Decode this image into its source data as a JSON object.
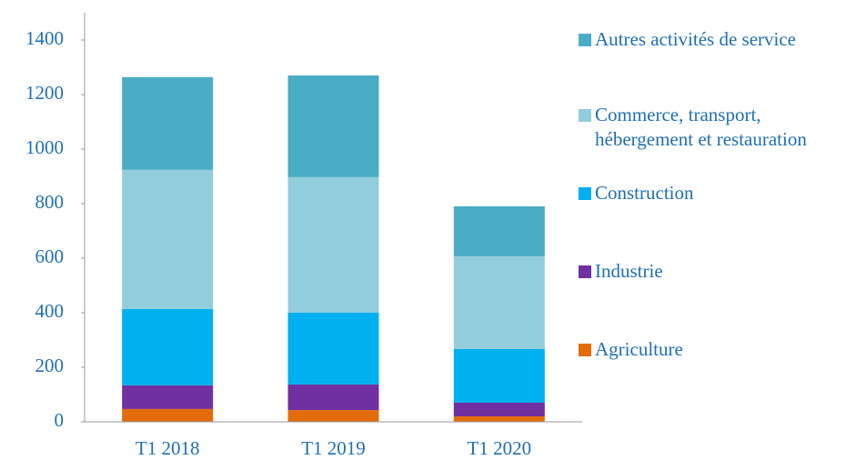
{
  "chart_data": {
    "type": "stacked_bar",
    "categories": [
      "T1 2018",
      "T1 2019",
      "T1 2020"
    ],
    "series": [
      {
        "name": "Agriculture",
        "color": "#e36c0a",
        "values": [
          47,
          43,
          20
        ]
      },
      {
        "name": "Industrie",
        "color": "#7030a0",
        "values": [
          87,
          94,
          50
        ]
      },
      {
        "name": "Construction",
        "color": "#00b0f0",
        "values": [
          280,
          263,
          197
        ]
      },
      {
        "name": "Commerce, transport, hébergement et restauration",
        "color": "#92cddc",
        "values": [
          510,
          497,
          340
        ]
      },
      {
        "name": "Autres activités de service",
        "color": "#4bacc6",
        "values": [
          340,
          373,
          183
        ]
      }
    ],
    "ylim": [
      0,
      1500
    ],
    "yticks": [
      0,
      200,
      400,
      600,
      800,
      1000,
      1200,
      1400
    ],
    "grid": false
  }
}
